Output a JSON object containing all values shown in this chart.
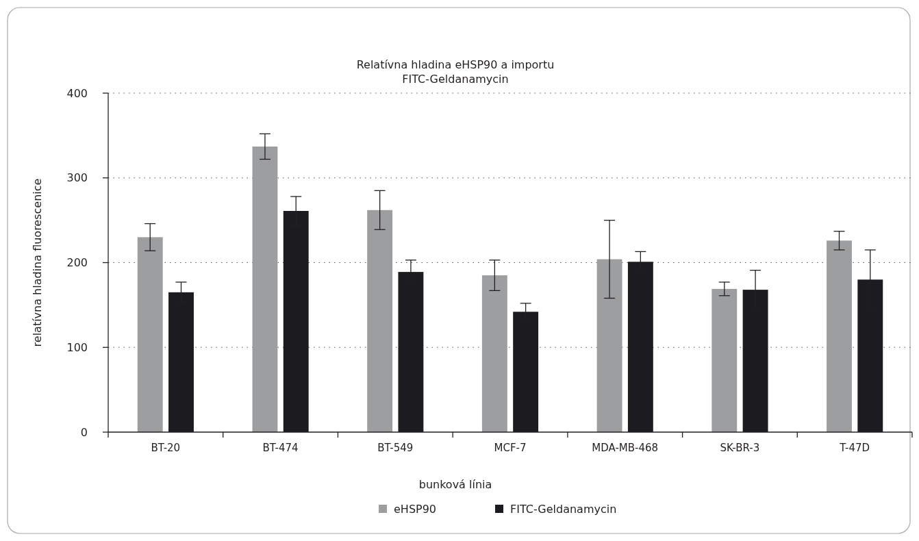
{
  "chart_data": {
    "type": "bar",
    "title": "Relatívna hladina eHSP90 a importu\nFITC-Geldanamycin",
    "xlabel": "bunková línia",
    "ylabel": "relatívna hladina fluorescenice",
    "categories": [
      "BT-20",
      "BT-474",
      "BT-549",
      "MCF-7",
      "MDA-MB-468",
      "SK-BR-3",
      "T-47D"
    ],
    "series": [
      {
        "name": "eHSP90",
        "color": "#9d9ea0",
        "values": [
          230,
          337,
          262,
          185,
          204,
          169,
          226
        ],
        "errors": [
          16,
          15,
          23,
          18,
          46,
          8,
          11
        ]
      },
      {
        "name": "FITC-Geldanamycin",
        "color": "#1c1b20",
        "values": [
          165,
          261,
          189,
          142,
          201,
          168,
          180
        ],
        "errors": [
          12,
          17,
          14,
          10,
          12,
          23,
          35
        ]
      }
    ],
    "ylim": [
      0,
      400
    ],
    "yticks": [
      0,
      100,
      200,
      300,
      400
    ],
    "grid": "y",
    "legend": "bottom"
  }
}
